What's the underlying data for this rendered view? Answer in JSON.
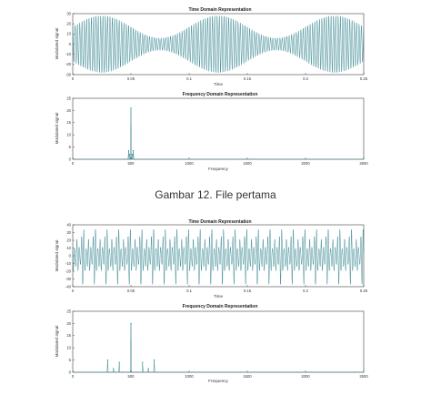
{
  "captions": {
    "first": "Gambar 12. File pertama"
  },
  "chart_data": [
    {
      "type": "line",
      "title": "Time Domain Representation",
      "xlabel": "Time",
      "ylabel": "Modulated signal",
      "xlim": [
        0,
        0.25
      ],
      "ylim": [
        -30,
        30
      ],
      "xticks": [
        "0",
        "0.05",
        "0.1",
        "0.15",
        "0.2",
        "0.25"
      ],
      "yticks": [
        "-30",
        "-20",
        "-10",
        "0",
        "10",
        "20",
        "30"
      ],
      "color": "#2a7f8a",
      "series": [
        {
          "carrier_hz": 500,
          "envelope_period_s": 0.1,
          "amplitude_max": 28,
          "amplitude_min": 6
        }
      ]
    },
    {
      "type": "line",
      "title": "Frequency Domain Representation",
      "xlabel": "Frequency",
      "ylabel": "Modulated signal",
      "xlim": [
        0,
        2500
      ],
      "ylim": [
        0,
        25
      ],
      "xticks": [
        "0",
        "500",
        "1000",
        "1500",
        "2000",
        "2500"
      ],
      "yticks": [
        "0",
        "5",
        "10",
        "15",
        "20",
        "25"
      ],
      "color": "#2a7f8a",
      "series": [
        {
          "x": [
            480,
            490,
            500,
            510,
            520
          ],
          "y": [
            3.5,
            2,
            21,
            2,
            3.5
          ]
        }
      ]
    },
    {
      "type": "line",
      "title": "Time Domain Representation",
      "xlabel": "Time",
      "ylabel": "Modulated signal",
      "xlim": [
        0,
        0.25
      ],
      "ylim": [
        -40,
        40
      ],
      "xticks": [
        "0",
        "0.05",
        "0.1",
        "0.15",
        "0.2",
        "0.25"
      ],
      "yticks": [
        "-40",
        "-30",
        "-20",
        "-10",
        "0",
        "10",
        "20",
        "30",
        "40"
      ],
      "color": "#2a7f8a",
      "series": [
        {
          "components_hz": [
            300,
            400,
            500,
            600,
            700
          ],
          "components_amp": [
            5,
            4,
            20,
            4,
            5
          ]
        }
      ]
    },
    {
      "type": "line",
      "title": "Frequency Domain Representation",
      "xlabel": "Frequency",
      "ylabel": "Modulated signal",
      "xlim": [
        0,
        2500
      ],
      "ylim": [
        0,
        25
      ],
      "xticks": [
        "0",
        "500",
        "1000",
        "1500",
        "2000",
        "2500"
      ],
      "yticks": [
        "0",
        "5",
        "10",
        "15",
        "20",
        "25"
      ],
      "color": "#2a7f8a",
      "series": [
        {
          "x": [
            300,
            350,
            400,
            500,
            600,
            650,
            700
          ],
          "y": [
            5,
            1.5,
            4,
            20,
            4,
            1.5,
            5
          ]
        }
      ]
    }
  ]
}
